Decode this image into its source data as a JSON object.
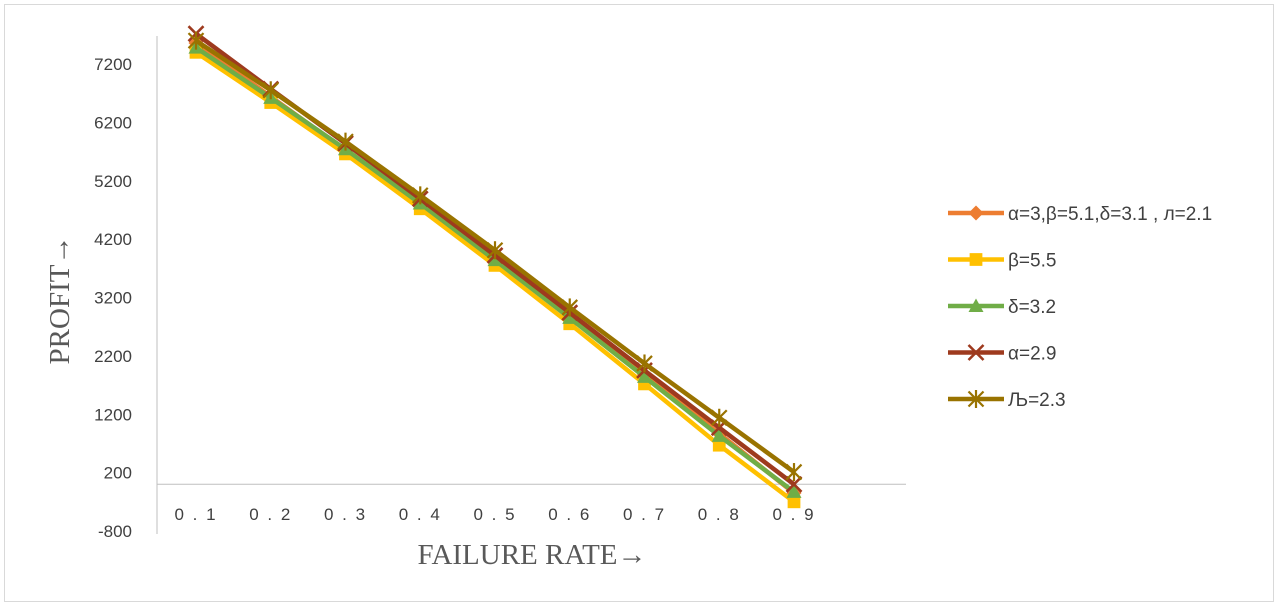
{
  "chart_data": {
    "type": "line",
    "title": "",
    "xlabel": "FAILURE RATE→",
    "ylabel": "PROFIT→",
    "categories": [
      "0.1",
      "0.2",
      "0.3",
      "0.4",
      "0.5",
      "0.6",
      "0.7",
      "0.8",
      "0.9"
    ],
    "ylim": [
      -800,
      7900
    ],
    "yticks": [
      -800,
      200,
      1200,
      2200,
      3200,
      4200,
      5200,
      6200,
      7200
    ],
    "grid": false,
    "legend_position": "right",
    "series": [
      {
        "name": "α=3,β=5.1,δ=3.1 , л=2.1",
        "color": "#ED7D31",
        "marker": "diamond",
        "values": [
          7560,
          6640,
          5720,
          4790,
          3830,
          2880,
          1880,
          870,
          -150
        ]
      },
      {
        "name": "β=5.5",
        "color": "#FFC000",
        "marker": "square",
        "values": [
          7400,
          6540,
          5660,
          4720,
          3750,
          2750,
          1720,
          670,
          -300
        ]
      },
      {
        "name": "δ=3.2",
        "color": "#70AD47",
        "marker": "triangle",
        "values": [
          7480,
          6620,
          5740,
          4810,
          3840,
          2850,
          1840,
          830,
          -130
        ]
      },
      {
        "name": "α=2.9",
        "color": "#9E3A1E",
        "marker": "x",
        "values": [
          7720,
          6770,
          5840,
          4890,
          3920,
          2940,
          1950,
          970,
          0
        ]
      },
      {
        "name": "Љ=2.3",
        "color": "#997300",
        "marker": "star",
        "values": [
          7600,
          6750,
          5870,
          4950,
          4010,
          3030,
          2070,
          1140,
          210
        ]
      }
    ]
  }
}
